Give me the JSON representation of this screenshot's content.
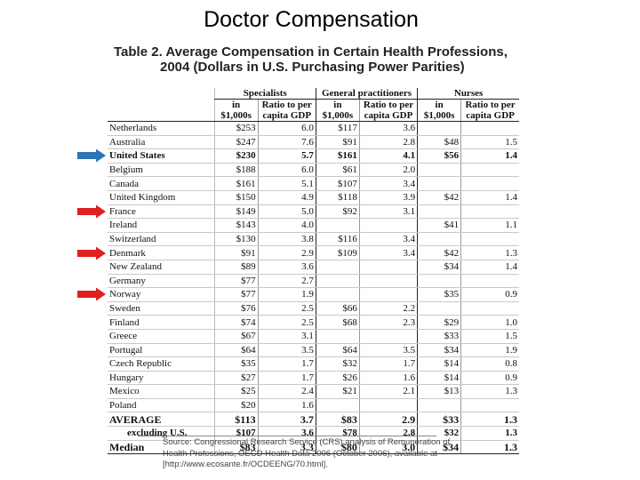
{
  "slide_title": "Doctor Compensation",
  "caption": {
    "line1": "Table 2. Average Compensation in Certain Health Professions,",
    "line2": "2004 (Dollars in U.S. Purchasing Power Parities)"
  },
  "headers": {
    "groups": [
      "Specialists",
      "General practitioners",
      "Nurses"
    ],
    "in_line1": "in",
    "in_line2": "$1,000s",
    "ratio_line1": "Ratio to per",
    "ratio_line2": "capita GDP"
  },
  "rows": [
    {
      "country": "Netherlands",
      "spec_k": "$253",
      "spec_r": "6.0",
      "gp_k": "$117",
      "gp_r": "3.6",
      "nur_k": "",
      "nur_r": ""
    },
    {
      "country": "Australia",
      "spec_k": "$247",
      "spec_r": "7.6",
      "gp_k": "$91",
      "gp_r": "2.8",
      "nur_k": "$48",
      "nur_r": "1.5"
    },
    {
      "country": "United States",
      "spec_k": "$230",
      "spec_r": "5.7",
      "gp_k": "$161",
      "gp_r": "4.1",
      "nur_k": "$56",
      "nur_r": "1.4"
    },
    {
      "country": "Belgium",
      "spec_k": "$188",
      "spec_r": "6.0",
      "gp_k": "$61",
      "gp_r": "2.0",
      "nur_k": "",
      "nur_r": ""
    },
    {
      "country": "Canada",
      "spec_k": "$161",
      "spec_r": "5.1",
      "gp_k": "$107",
      "gp_r": "3.4",
      "nur_k": "",
      "nur_r": ""
    },
    {
      "country": "United Kingdom",
      "spec_k": "$150",
      "spec_r": "4.9",
      "gp_k": "$118",
      "gp_r": "3.9",
      "nur_k": "$42",
      "nur_r": "1.4"
    },
    {
      "country": "France",
      "spec_k": "$149",
      "spec_r": "5.0",
      "gp_k": "$92",
      "gp_r": "3.1",
      "nur_k": "",
      "nur_r": ""
    },
    {
      "country": "Ireland",
      "spec_k": "$143",
      "spec_r": "4.0",
      "gp_k": "",
      "gp_r": "",
      "nur_k": "$41",
      "nur_r": "1.1"
    },
    {
      "country": "Switzerland",
      "spec_k": "$130",
      "spec_r": "3.8",
      "gp_k": "$116",
      "gp_r": "3.4",
      "nur_k": "",
      "nur_r": ""
    },
    {
      "country": "Denmark",
      "spec_k": "$91",
      "spec_r": "2.9",
      "gp_k": "$109",
      "gp_r": "3.4",
      "nur_k": "$42",
      "nur_r": "1.3"
    },
    {
      "country": "New Zealand",
      "spec_k": "$89",
      "spec_r": "3.6",
      "gp_k": "",
      "gp_r": "",
      "nur_k": "$34",
      "nur_r": "1.4"
    },
    {
      "country": "Germany",
      "spec_k": "$77",
      "spec_r": "2.7",
      "gp_k": "",
      "gp_r": "",
      "nur_k": "",
      "nur_r": ""
    },
    {
      "country": "Norway",
      "spec_k": "$77",
      "spec_r": "1.9",
      "gp_k": "",
      "gp_r": "",
      "nur_k": "$35",
      "nur_r": "0.9"
    },
    {
      "country": "Sweden",
      "spec_k": "$76",
      "spec_r": "2.5",
      "gp_k": "$66",
      "gp_r": "2.2",
      "nur_k": "",
      "nur_r": ""
    },
    {
      "country": "Finland",
      "spec_k": "$74",
      "spec_r": "2.5",
      "gp_k": "$68",
      "gp_r": "2.3",
      "nur_k": "$29",
      "nur_r": "1.0"
    },
    {
      "country": "Greece",
      "spec_k": "$67",
      "spec_r": "3.1",
      "gp_k": "",
      "gp_r": "",
      "nur_k": "$33",
      "nur_r": "1.5"
    },
    {
      "country": "Portugal",
      "spec_k": "$64",
      "spec_r": "3.5",
      "gp_k": "$64",
      "gp_r": "3.5",
      "nur_k": "$34",
      "nur_r": "1.9"
    },
    {
      "country": "Czech Republic",
      "spec_k": "$35",
      "spec_r": "1.7",
      "gp_k": "$32",
      "gp_r": "1.7",
      "nur_k": "$14",
      "nur_r": "0.8"
    },
    {
      "country": "Hungary",
      "spec_k": "$27",
      "spec_r": "1.7",
      "gp_k": "$26",
      "gp_r": "1.6",
      "nur_k": "$14",
      "nur_r": "0.9"
    },
    {
      "country": "Mexico",
      "spec_k": "$25",
      "spec_r": "2.4",
      "gp_k": "$21",
      "gp_r": "2.1",
      "nur_k": "$13",
      "nur_r": "1.3"
    },
    {
      "country": "Poland",
      "spec_k": "$20",
      "spec_r": "1.6",
      "gp_k": "",
      "gp_r": "",
      "nur_k": "",
      "nur_r": ""
    },
    {
      "country": "AVERAGE",
      "spec_k": "$113",
      "spec_r": "3.7",
      "gp_k": "$83",
      "gp_r": "2.9",
      "nur_k": "$33",
      "nur_r": "1.3"
    },
    {
      "country": "excluding U.S.",
      "spec_k": "$107",
      "spec_r": "3.6",
      "gp_k": "$78",
      "gp_r": "2.8",
      "nur_k": "$32",
      "nur_r": "1.3"
    },
    {
      "country": "Median",
      "spec_k": "$83",
      "spec_r": "3.3",
      "gp_k": "$80",
      "gp_r": "3.0",
      "nur_k": "$34",
      "nur_r": "1.3"
    }
  ],
  "source": "Source: Congressional Research Service (CRS) analysis of Remuneration of Health Professions, OECD Health Data 2006 (October 2006), available at [http://www.ecosante.fr/OCDEENG/70.html].",
  "arrows": [
    {
      "country": "United States",
      "color": "#2e75b6"
    },
    {
      "country": "France",
      "color": "#e02020"
    },
    {
      "country": "Denmark",
      "color": "#e02020"
    },
    {
      "country": "Norway",
      "color": "#e02020"
    }
  ]
}
